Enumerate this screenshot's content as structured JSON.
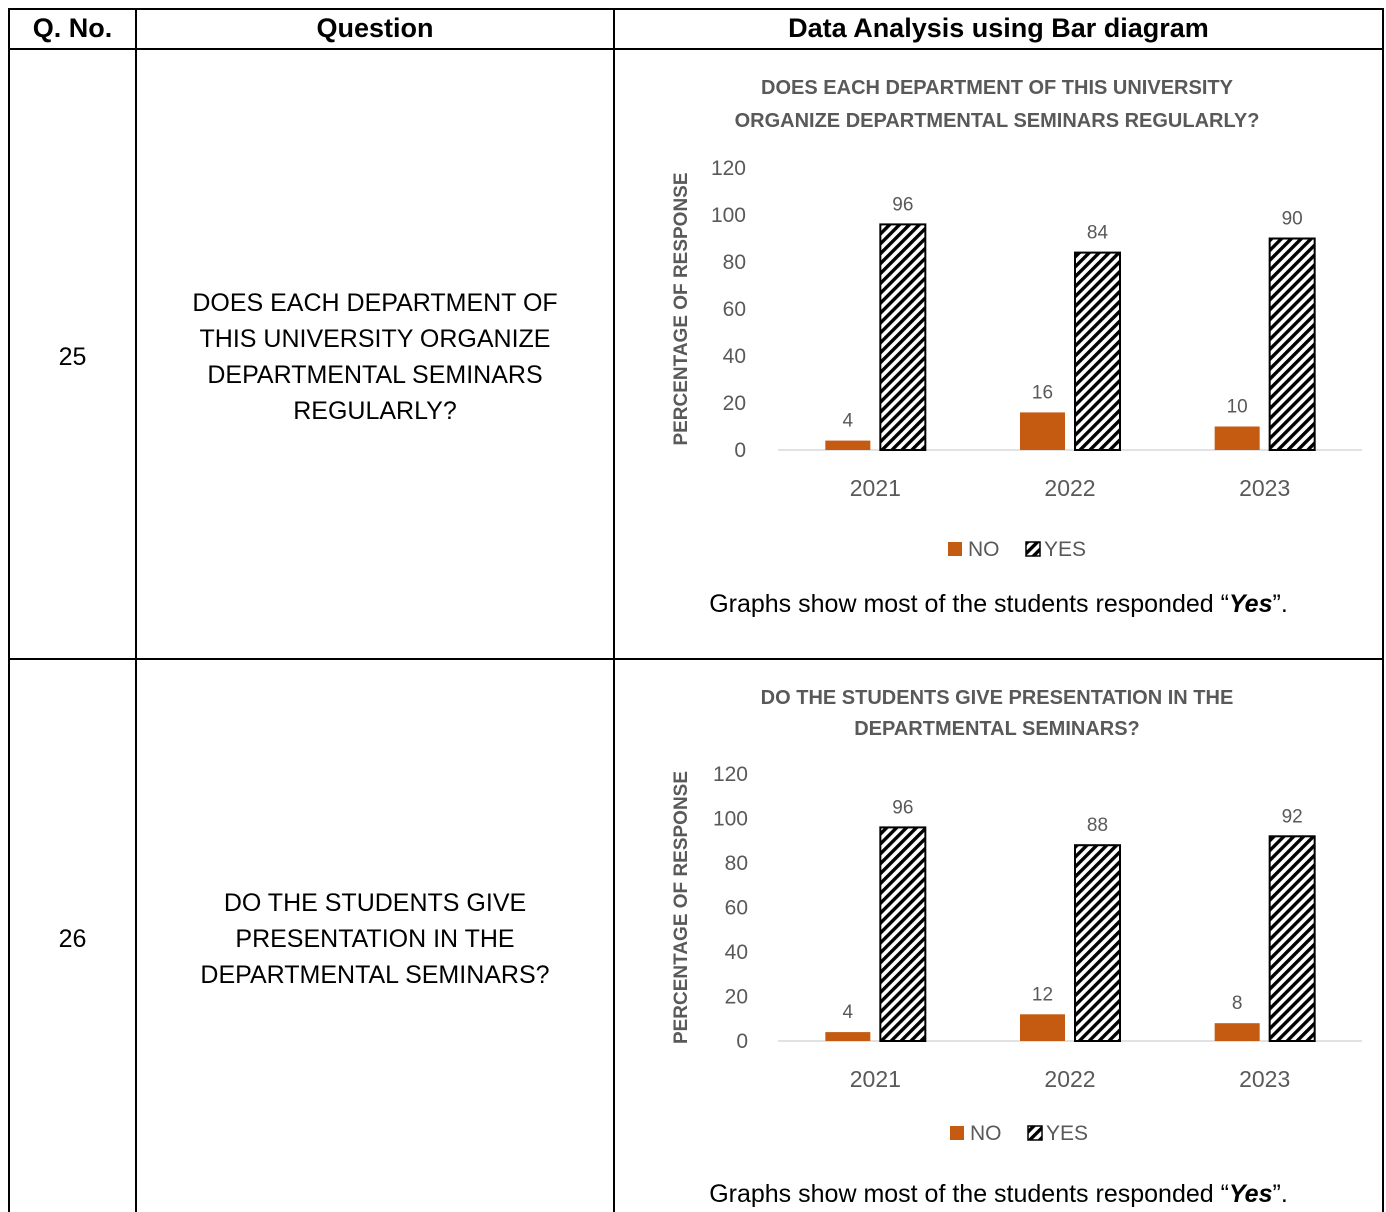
{
  "table": {
    "headers": {
      "qno": "Q. No.",
      "question": "Question",
      "analysis": "Data Analysis using Bar diagram"
    },
    "rows": [
      {
        "qno": "25",
        "question": "DOES EACH DEPARTMENT OF THIS UNIVERSITY ORGANIZE DEPARTMENTAL SEMINARS REGULARLY?",
        "caption": {
          "prefix": "Graphs show most of the students responded “",
          "emphasis": "Yes",
          "suffix": "”."
        }
      },
      {
        "qno": "26",
        "question": "DO THE STUDENTS GIVE PRESENTATION IN THE DEPARTMENTAL SEMINARS?",
        "caption": {
          "prefix": "Graphs show most of the students responded “",
          "emphasis": "Yes",
          "suffix": "”."
        }
      }
    ]
  },
  "colors": {
    "no": "#c55a11",
    "yes_stripe": "#000000",
    "chart_text": "#595959",
    "axis": "#d9d9d9"
  },
  "chart_data": [
    {
      "type": "bar",
      "title_lines": [
        "DOES EACH DEPARTMENT OF THIS UNIVERSITY",
        "ORGANIZE DEPARTMENTAL SEMINARS REGULARLY?"
      ],
      "categories": [
        "2021",
        "2022",
        "2023"
      ],
      "series": [
        {
          "name": "NO",
          "values": [
            4,
            16,
            10
          ]
        },
        {
          "name": "YES",
          "values": [
            96,
            84,
            90
          ]
        }
      ],
      "ylabel": "PERCENTAGE OF RESPONSE",
      "ylim": [
        0,
        120
      ],
      "yticks": [
        "0",
        "20",
        "40",
        "60",
        "80",
        "100",
        "120"
      ],
      "grid": false,
      "legend": "bottom"
    },
    {
      "type": "bar",
      "title_lines": [
        "DO THE STUDENTS GIVE PRESENTATION IN THE",
        "DEPARTMENTAL SEMINARS?"
      ],
      "categories": [
        "2021",
        "2022",
        "2023"
      ],
      "series": [
        {
          "name": "NO",
          "values": [
            4,
            12,
            8
          ]
        },
        {
          "name": "YES",
          "values": [
            96,
            88,
            92
          ]
        }
      ],
      "ylabel": "PERCENTAGE OF RESPONSE",
      "ylim": [
        0,
        120
      ],
      "yticks": [
        "0",
        "20",
        "40",
        "60",
        "80",
        "100",
        "120"
      ],
      "grid": false,
      "legend": "bottom"
    }
  ]
}
